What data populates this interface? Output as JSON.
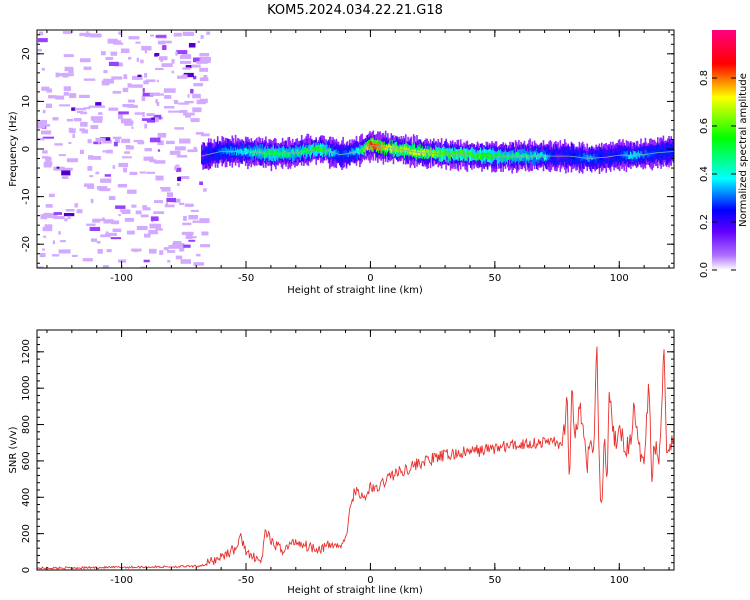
{
  "title": "KOM5.2024.034.22.21.G18",
  "chart_data": [
    {
      "type": "heatmap",
      "xlabel": "Height of straight line (km)",
      "ylabel": "Frequency (Hz)",
      "xlim": [
        -134,
        122
      ],
      "ylim": [
        -25,
        25
      ],
      "xticks": [
        -100,
        -50,
        0,
        50,
        100
      ],
      "yticks": [
        -20,
        -10,
        0,
        10,
        20
      ],
      "colorbar": {
        "label": "Normalized spectral amplitude",
        "range": [
          0,
          1
        ],
        "ticks": [
          "0.0",
          "0.2",
          "0.4",
          "0.6",
          "0.8"
        ],
        "colors": [
          "#ffffff",
          "#8000ff",
          "#0000ff",
          "#00ffff",
          "#00ff00",
          "#ffff00",
          "#ff0000",
          "#ff0080"
        ]
      },
      "ridge": {
        "x": [
          -68,
          -60,
          -50,
          -40,
          -30,
          -20,
          -12,
          -5,
          0,
          10,
          20,
          30,
          40,
          50,
          60,
          70,
          75,
          80,
          88,
          95,
          100,
          105,
          110,
          115,
          122
        ],
        "y": [
          -1.5,
          -0.5,
          -0.5,
          -1.0,
          -0.8,
          0.0,
          -1.2,
          -0.5,
          0.8,
          0.0,
          -0.8,
          -1.0,
          -1.3,
          -1.5,
          -1.5,
          -1.5,
          -1.5,
          -1.5,
          -2.0,
          -1.7,
          -1.3,
          -1.3,
          -1.2,
          -0.8,
          -0.5
        ],
        "amplitude": [
          0.15,
          0.35,
          0.45,
          0.55,
          0.5,
          0.6,
          0.3,
          0.45,
          0.85,
          0.65,
          0.7,
          0.6,
          0.6,
          0.55,
          0.5,
          0.45,
          0.15,
          0.25,
          0.4,
          0.2,
          0.3,
          0.45,
          0.35,
          0.3,
          0.3
        ]
      },
      "noise_region": [
        -134,
        -66
      ]
    },
    {
      "type": "line",
      "xlabel": "Height of straight line (km)",
      "ylabel": "SNR (v/v)",
      "xlim": [
        -134,
        122
      ],
      "ylim": [
        0,
        1320
      ],
      "xticks": [
        -100,
        -50,
        0,
        50,
        100
      ],
      "yticks": [
        0,
        200,
        400,
        600,
        800,
        1000,
        1200
      ],
      "color": "#e8322d",
      "x": [
        -134,
        -120,
        -100,
        -80,
        -70,
        -66,
        -62,
        -58,
        -54,
        -52,
        -50,
        -48,
        -46,
        -44,
        -42,
        -40,
        -35,
        -30,
        -25,
        -20,
        -15,
        -11,
        -9,
        -7,
        -5,
        -3,
        -1,
        0,
        2,
        5,
        8,
        12,
        15,
        20,
        25,
        30,
        35,
        40,
        45,
        50,
        55,
        60,
        65,
        70,
        74,
        76,
        78,
        79,
        80,
        81,
        82,
        84,
        86,
        87,
        88,
        90,
        91,
        92,
        93,
        94,
        95,
        96,
        98,
        100,
        104,
        106,
        108,
        110,
        112,
        113,
        114,
        116,
        118,
        119,
        120,
        122
      ],
      "y": [
        10,
        12,
        15,
        18,
        20,
        30,
        60,
        90,
        120,
        180,
        110,
        60,
        80,
        35,
        220,
        150,
        110,
        160,
        130,
        120,
        140,
        130,
        250,
        410,
        450,
        380,
        420,
        470,
        430,
        480,
        520,
        540,
        560,
        590,
        610,
        630,
        640,
        650,
        660,
        670,
        680,
        690,
        700,
        700,
        720,
        650,
        780,
        980,
        420,
        1000,
        720,
        900,
        700,
        560,
        680,
        700,
        1310,
        550,
        300,
        750,
        470,
        950,
        700,
        750,
        660,
        900,
        640,
        640,
        1050,
        480,
        700,
        600,
        1240,
        650,
        700,
        700
      ]
    }
  ]
}
